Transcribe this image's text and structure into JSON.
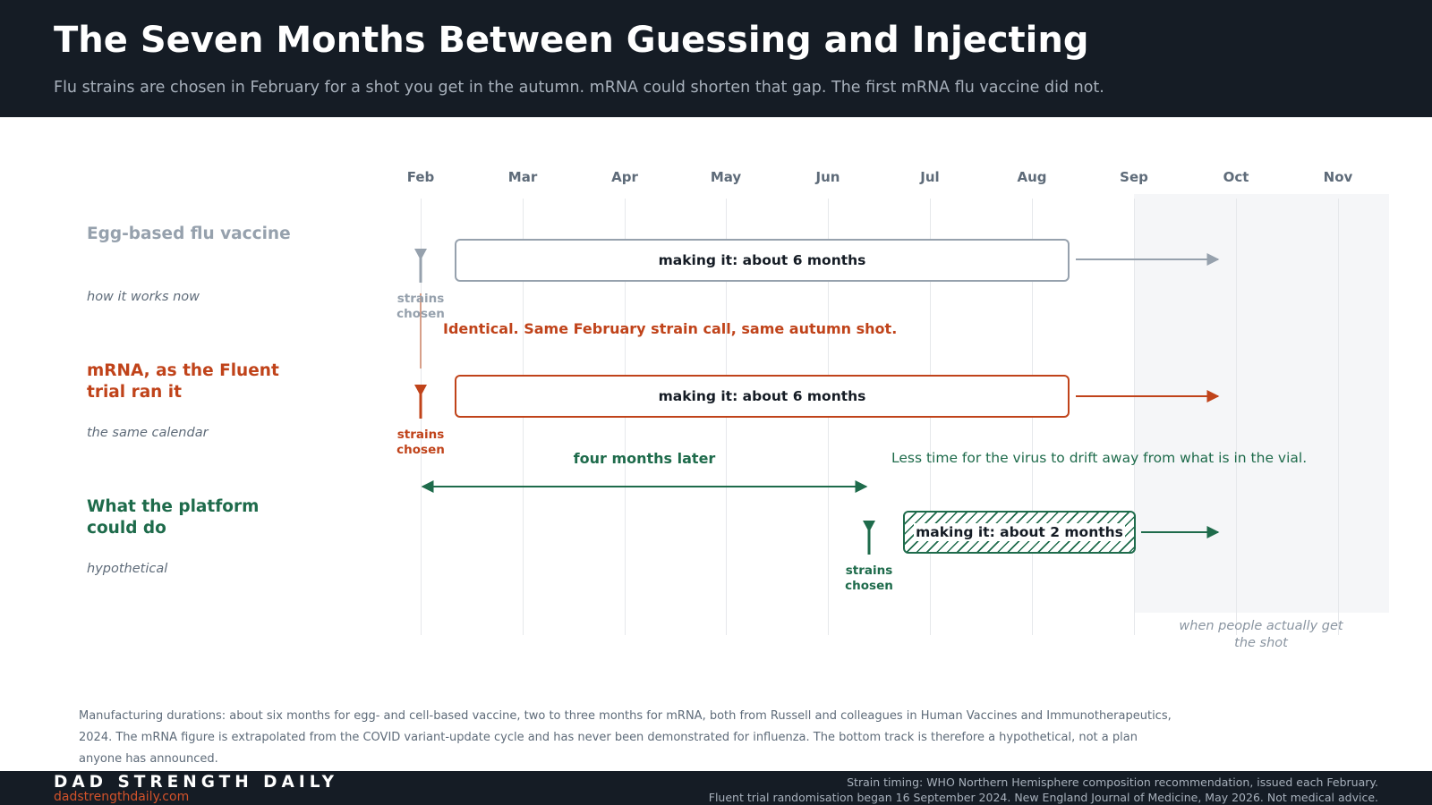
{
  "header": {
    "title": "The Seven Months Between Guessing and Injecting",
    "subtitle": "Flu strains are chosen in February for a shot you get in the autumn. mRNA could shorten that gap. The first mRNA flu vaccine did not."
  },
  "timeline": {
    "months": [
      "Feb",
      "Mar",
      "Apr",
      "May",
      "Jun",
      "Jul",
      "Aug",
      "Sep",
      "Oct",
      "Nov"
    ],
    "shot_window_label": "when people actually get the shot"
  },
  "rows": [
    {
      "title": "Egg-based flu vaccine",
      "subtitle": "how it works now",
      "strains_label": "strains chosen",
      "bar_label": "making it: about 6 months",
      "color": "#96a1ad"
    },
    {
      "title": "mRNA, as the Fluent trial ran it",
      "subtitle": "the same calendar",
      "strains_label": "strains chosen",
      "bar_label": "making it: about 6 months",
      "color": "#c0431a"
    },
    {
      "title": "What the platform could do",
      "subtitle": "hypothetical",
      "strains_label": "strains chosen",
      "bar_label": "making it: about 2 months",
      "color": "#1e6b4b"
    }
  ],
  "annotations": {
    "identical": "Identical. Same February strain call, same autumn shot.",
    "four_months_later": "four months later",
    "less_time": "Less time for the virus to drift away from what is in the vial."
  },
  "note": "Manufacturing durations: about six months for egg- and cell-based vaccine, two to three months for mRNA, both from Russell and colleagues in Human Vaccines and Immunotherapeutics, 2024. The mRNA figure is extrapolated from the COVID variant-update cycle and has never been demonstrated for influenza. The bottom track is therefore a hypothetical, not a plan anyone has announced.",
  "footer": {
    "brand": "DAD STRENGTH DAILY",
    "url": "dadstrengthdaily.com",
    "source_line1": "Strain timing: WHO Northern Hemisphere composition recommendation, issued each February.",
    "source_line2": "Fluent trial randomisation began 16 September 2024. New England Journal of Medicine, May 2026. Not medical advice."
  },
  "colors": {
    "header_bg": "#151c25",
    "egg": "#96a1ad",
    "mrna": "#c0431a",
    "platform": "#1e6b4b"
  }
}
